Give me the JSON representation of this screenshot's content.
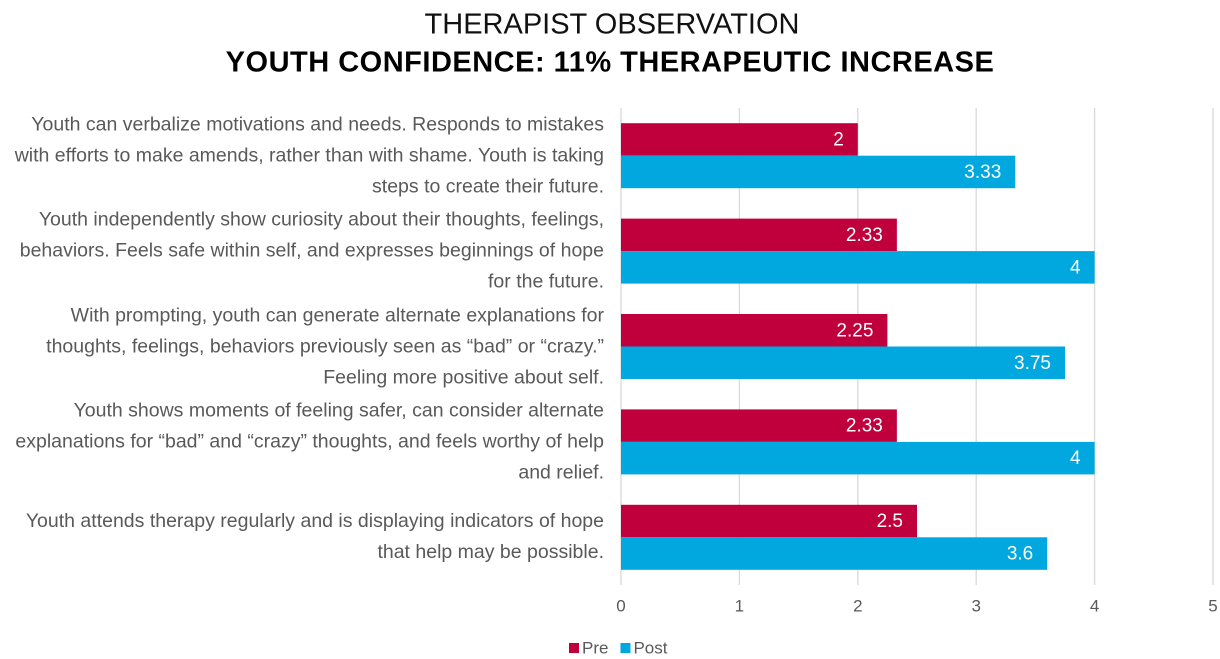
{
  "chart_data": {
    "type": "hbar",
    "title": "THERAPIST OBSERVATION",
    "subtitle": "YOUTH CONFIDENCE: 11% THERAPEUTIC INCREASE",
    "categories": [
      "Youth can verbalize motivations and needs. Responds to mistakes with efforts to make amends, rather than with shame. Youth is taking steps to create their future.",
      "Youth independently show curiosity about their thoughts, feelings, behaviors. Feels safe within self, and expresses beginnings of hope for the future.",
      "With prompting, youth can generate alternate explanations for thoughts, feelings, behaviors previously seen as “bad” or “crazy.” Feeling more positive about self.",
      "Youth shows moments of feeling safer, can consider alternate explanations for “bad” and “crazy” thoughts, and feels worthy of help and relief.",
      "Youth attends therapy regularly and is displaying indicators of hope that help may be possible."
    ],
    "series": [
      {
        "name": "Pre",
        "color": "#c0003c",
        "values": [
          2,
          2.33,
          2.25,
          2.33,
          2.5
        ]
      },
      {
        "name": "Post",
        "color": "#00a8df",
        "values": [
          3.33,
          4,
          3.75,
          4,
          3.6
        ]
      }
    ],
    "xlim": [
      0,
      5
    ],
    "xticks": [
      0,
      1,
      2,
      3,
      4,
      5
    ],
    "grid": true,
    "legend": "bottom"
  }
}
